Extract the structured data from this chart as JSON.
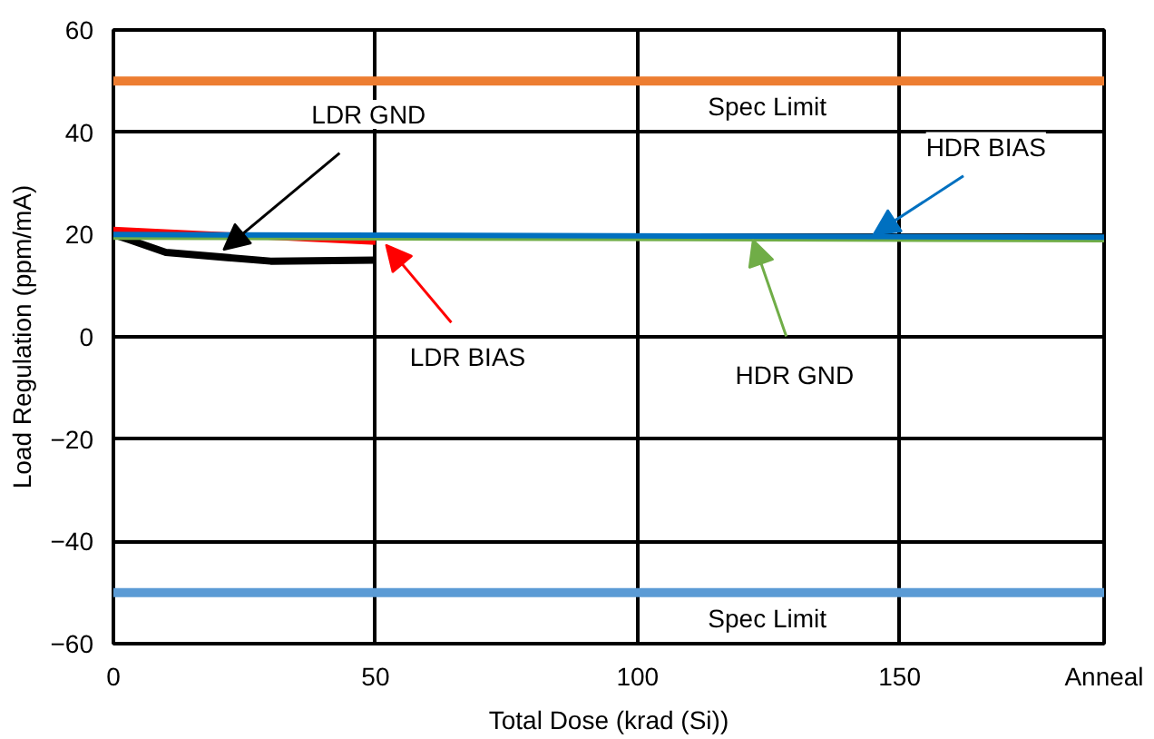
{
  "chart_data": {
    "type": "line",
    "xlabel": "Total Dose (krad (Si))",
    "ylabel": "Load Regulation (ppm/mA)",
    "xlim": [
      0,
      189
    ],
    "ylim": [
      -60,
      60
    ],
    "xticks": [
      0,
      50,
      100,
      150,
      {
        "value": 189,
        "label": "Anneal"
      }
    ],
    "yticks": [
      -60,
      -40,
      -20,
      0,
      20,
      40,
      60
    ],
    "grid": true,
    "marker": "none",
    "line_style": "solid",
    "series": [
      {
        "color": "#000000",
        "x": [
          0,
          3,
          10,
          30,
          50
        ],
        "values": [
          20,
          19,
          16.5,
          14.8,
          15
        ]
      },
      {
        "color": "#ff0000",
        "x": [
          0,
          50
        ],
        "values": [
          21,
          18.5
        ]
      },
      {
        "color": "#70ad47",
        "x": [
          0,
          189
        ],
        "values": [
          19.5,
          19
        ]
      },
      {
        "color": "#0070c0",
        "x": [
          0,
          189
        ],
        "values": [
          20,
          19.5
        ]
      }
    ],
    "ref_lines": [
      {
        "axis": "y",
        "value": 50,
        "label": "Spec Limit",
        "color": "#ed7d31"
      },
      {
        "axis": "y",
        "value": -50,
        "label": "Spec Limit",
        "color": "#5b9bd5"
      }
    ],
    "annotations": [
      {
        "text": "LDR GND",
        "x": 21,
        "y": 17
      },
      {
        "text": "LDR BIAS",
        "x": 52,
        "y": 18
      },
      {
        "text": "HDR GND",
        "x": 122,
        "y": 19
      },
      {
        "text": "HDR BIAS",
        "x": 145,
        "y": 20
      }
    ]
  }
}
